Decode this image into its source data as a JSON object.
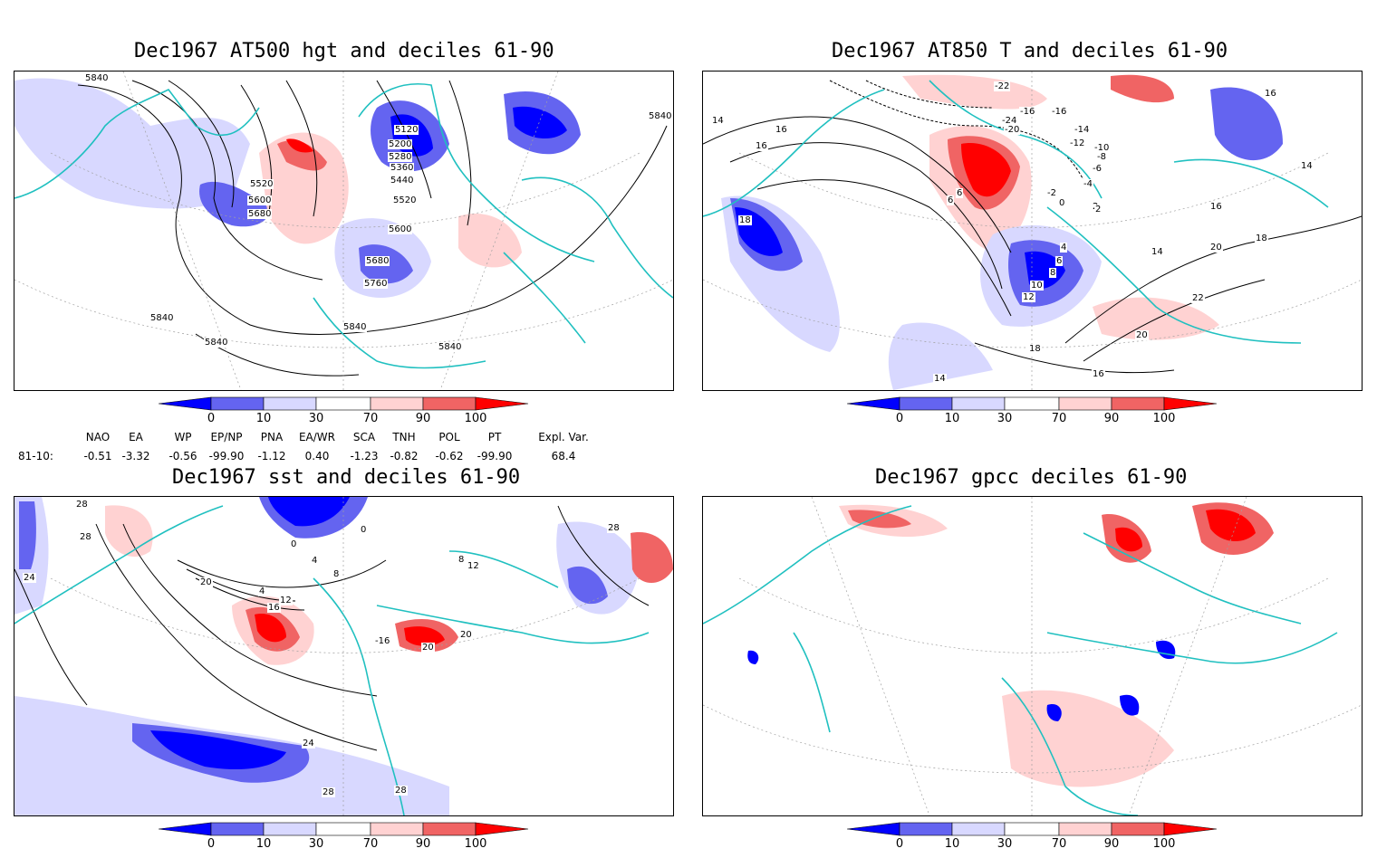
{
  "panels": [
    {
      "title": "Dec1967 AT500 hgt and deciles 61-90",
      "contour_labels": [
        "5840",
        "5840",
        "5840",
        "5840",
        "5840",
        "5840",
        "5120",
        "5200",
        "5280",
        "5360",
        "5440",
        "5520",
        "5520",
        "5600",
        "5680",
        "5600",
        "5680",
        "5760"
      ]
    },
    {
      "title": "Dec1967 AT850 T and deciles 61-90",
      "contour_labels": [
        "14",
        "16",
        "6",
        "18",
        "-22",
        "-16",
        "-24",
        "-20",
        "-16",
        "-14",
        "-12",
        "-10",
        "-8",
        "-6",
        "-4",
        "-2",
        "2",
        "0",
        "2",
        "6",
        "4",
        "6",
        "8",
        "10",
        "12",
        "16",
        "18",
        "14",
        "20",
        "22",
        "20",
        "16",
        "18",
        "14",
        "16",
        "14",
        "16"
      ]
    },
    {
      "title": "Dec1967 sst and deciles 61-90",
      "contour_labels": [
        "28",
        "28",
        "24",
        "0",
        "0",
        "4",
        "8",
        "4",
        "12",
        "16",
        "20",
        "-16",
        "20",
        "20",
        "8",
        "12",
        "24",
        "28",
        "28",
        "28"
      ]
    },
    {
      "title": "Dec1967 gpcc deciles 61-90",
      "contour_labels": []
    }
  ],
  "colorbar": {
    "labels": [
      "0",
      "10",
      "30",
      "70",
      "90",
      "100"
    ],
    "colors": {
      "d0": "#0000ff",
      "d1": "#6464f0",
      "d2": "#d8d8ff",
      "d3": "#ffffff",
      "d4": "#ffd2d2",
      "d5": "#f06464",
      "d6": "#ff0000"
    }
  },
  "teleconnection": {
    "headers": [
      "NAO",
      "EA",
      "WP",
      "EP/NP",
      "PNA",
      "EA/WR",
      "SCA",
      "TNH",
      "POL",
      "PT",
      "Expl. Var."
    ],
    "row_label": "81-10:",
    "values": [
      "-0.51",
      "-3.32",
      "-0.56",
      "-99.90",
      "-1.12",
      "0.40",
      "-1.23",
      "-0.82",
      "-0.62",
      "-99.90",
      "68.4"
    ]
  },
  "colors": {
    "coast": "#20c0c0",
    "contour": "#000000",
    "grid": "#a0a0a0"
  }
}
